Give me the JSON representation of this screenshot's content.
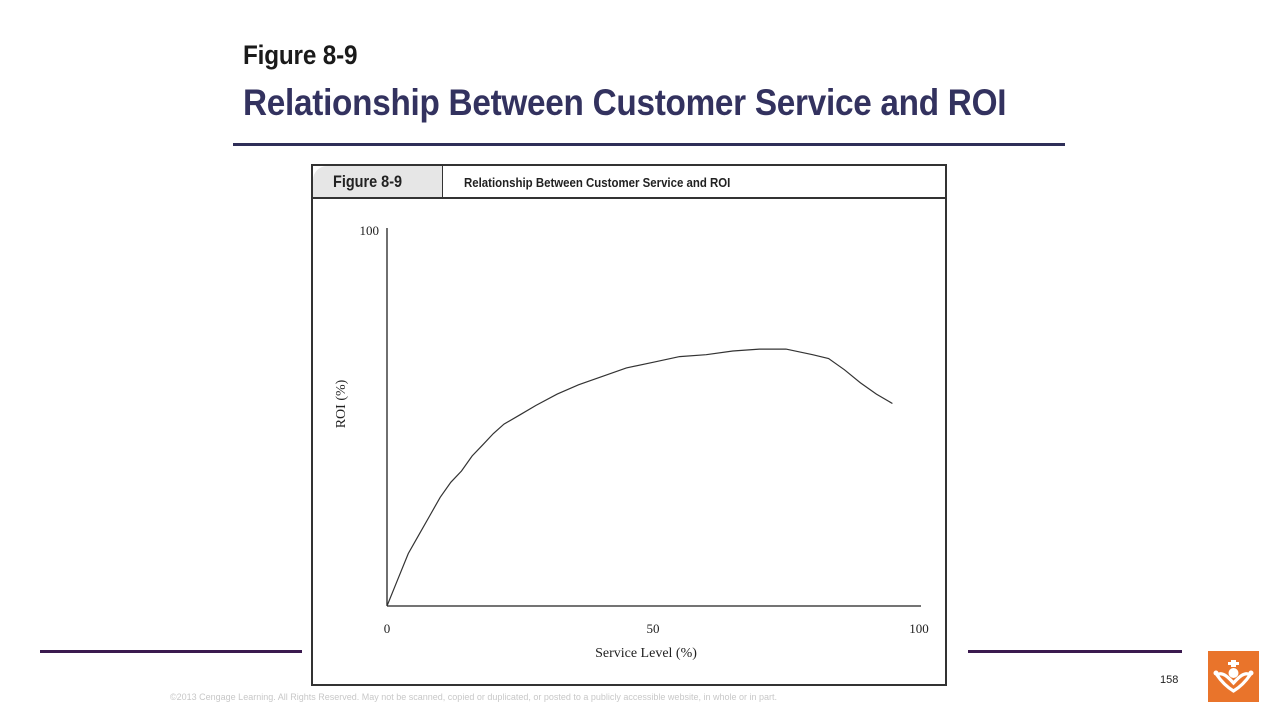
{
  "slide": {
    "figure_number": "Figure 8-9",
    "title": "Relationship Between Customer Service and ROI",
    "page_number": "158",
    "copyright": "©2013 Cengage Learning. All Rights Reserved. May not be scanned, copied or duplicated, or posted to a publicly accessible website, in whole or in part."
  },
  "figure": {
    "tab_label": "Figure 8-9",
    "header_title": "Relationship Between Customer Service and ROI"
  },
  "colors": {
    "title_accent": "#33325f",
    "rule": "#2f2e58",
    "footer_rule": "#3b1a4f",
    "logo_orange": "#e9742b"
  },
  "chart_data": {
    "type": "line",
    "title": "Relationship Between Customer Service and ROI",
    "xlabel": "Service Level (%)",
    "ylabel": "ROI (%)",
    "xlim": [
      0,
      100
    ],
    "ylim": [
      0,
      100
    ],
    "x_ticks": [
      "0",
      "50",
      "100"
    ],
    "y_ticks": [
      "100"
    ],
    "grid": false,
    "series": [
      {
        "values": [
          [
            0,
            0
          ],
          [
            2,
            7
          ],
          [
            4,
            14
          ],
          [
            6,
            19
          ],
          [
            8,
            24
          ],
          [
            10,
            29
          ],
          [
            12,
            33
          ],
          [
            14,
            36
          ],
          [
            16,
            40
          ],
          [
            18,
            43
          ],
          [
            20,
            46
          ],
          [
            22,
            48.5
          ],
          [
            25,
            51
          ],
          [
            28,
            53.5
          ],
          [
            32,
            56.5
          ],
          [
            36,
            59
          ],
          [
            40,
            61
          ],
          [
            45,
            63.5
          ],
          [
            50,
            65
          ],
          [
            55,
            66.5
          ],
          [
            60,
            67
          ],
          [
            65,
            68
          ],
          [
            70,
            68.5
          ],
          [
            75,
            68.5
          ],
          [
            80,
            67
          ],
          [
            83,
            66
          ],
          [
            86,
            63
          ],
          [
            89,
            59.5
          ],
          [
            92,
            56.5
          ],
          [
            95,
            54
          ]
        ]
      }
    ]
  }
}
